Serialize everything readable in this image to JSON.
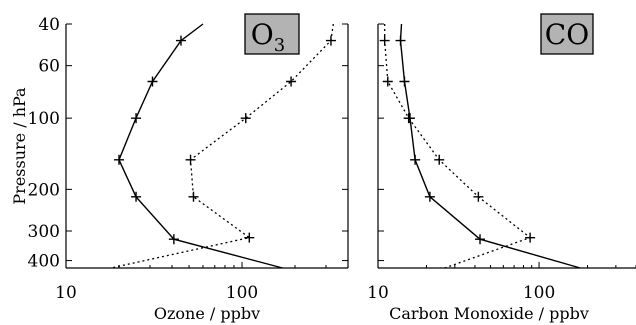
{
  "chart_data": [
    {
      "type": "line",
      "panel_label": "O",
      "panel_label_sub": "3",
      "xlabel": "Ozone / ppbv",
      "ylabel": "Pressure / hPa",
      "xscale": "log",
      "yscale": "log",
      "y_inverted": true,
      "xlim": [
        10,
        400
      ],
      "ylim": [
        40,
        430
      ],
      "xticks": [
        10,
        100
      ],
      "xtick_labels": [
        "10",
        "100"
      ],
      "yticks": [
        40,
        60,
        100,
        200,
        300,
        400
      ],
      "ytick_labels": [
        "40",
        "60",
        "100",
        "200",
        "300",
        "400"
      ],
      "grid": false,
      "series": [
        {
          "style": "solid",
          "points": [
            [
              60,
              40
            ],
            [
              45,
              47
            ],
            [
              31,
              70
            ],
            [
              25,
              100
            ],
            [
              20,
              150
            ],
            [
              25,
              215
            ],
            [
              41,
              325
            ],
            [
              170,
              430
            ]
          ],
          "markers": [
            [
              45,
              47
            ],
            [
              31,
              70
            ],
            [
              25,
              100
            ],
            [
              20,
              150
            ],
            [
              25,
              215
            ],
            [
              41,
              325
            ]
          ]
        },
        {
          "style": "dotted",
          "points": [
            [
              330,
              40
            ],
            [
              320,
              47
            ],
            [
              190,
              70
            ],
            [
              105,
              100
            ],
            [
              51,
              150
            ],
            [
              53,
              215
            ],
            [
              110,
              320
            ],
            [
              18,
              430
            ]
          ],
          "markers": [
            [
              320,
              47
            ],
            [
              190,
              70
            ],
            [
              105,
              100
            ],
            [
              51,
              150
            ],
            [
              53,
              215
            ],
            [
              110,
              320
            ]
          ]
        }
      ]
    },
    {
      "type": "line",
      "panel_label": "CO",
      "panel_label_sub": "",
      "xlabel": "Carbon Monoxide / ppbv",
      "ylabel": "",
      "xscale": "log",
      "yscale": "log",
      "y_inverted": true,
      "xlim": [
        10,
        400
      ],
      "ylim": [
        40,
        430
      ],
      "xticks": [
        10,
        100
      ],
      "xtick_labels": [
        "10",
        "100"
      ],
      "yticks": [
        40,
        60,
        100,
        200,
        300,
        400
      ],
      "ytick_labels": [],
      "grid": false,
      "series": [
        {
          "style": "solid",
          "points": [
            [
              14,
              40
            ],
            [
              13.8,
              47
            ],
            [
              14.6,
              70
            ],
            [
              15.8,
              100
            ],
            [
              17,
              150
            ],
            [
              21,
              215
            ],
            [
              43,
              325
            ],
            [
              180,
              430
            ]
          ],
          "markers": [
            [
              13.8,
              47
            ],
            [
              14.6,
              70
            ],
            [
              15.8,
              100
            ],
            [
              17,
              150
            ],
            [
              21,
              215
            ],
            [
              43,
              325
            ]
          ]
        },
        {
          "style": "dotted",
          "points": [
            [
              11,
              40
            ],
            [
              11,
              47
            ],
            [
              11.5,
              70
            ],
            [
              15.5,
              100
            ],
            [
              24,
              150
            ],
            [
              42,
              215
            ],
            [
              88,
              320
            ],
            [
              26,
              430
            ]
          ],
          "markers": [
            [
              11,
              47
            ],
            [
              11.5,
              70
            ],
            [
              15.5,
              100
            ],
            [
              24,
              150
            ],
            [
              42,
              215
            ],
            [
              88,
              320
            ]
          ]
        }
      ]
    }
  ]
}
